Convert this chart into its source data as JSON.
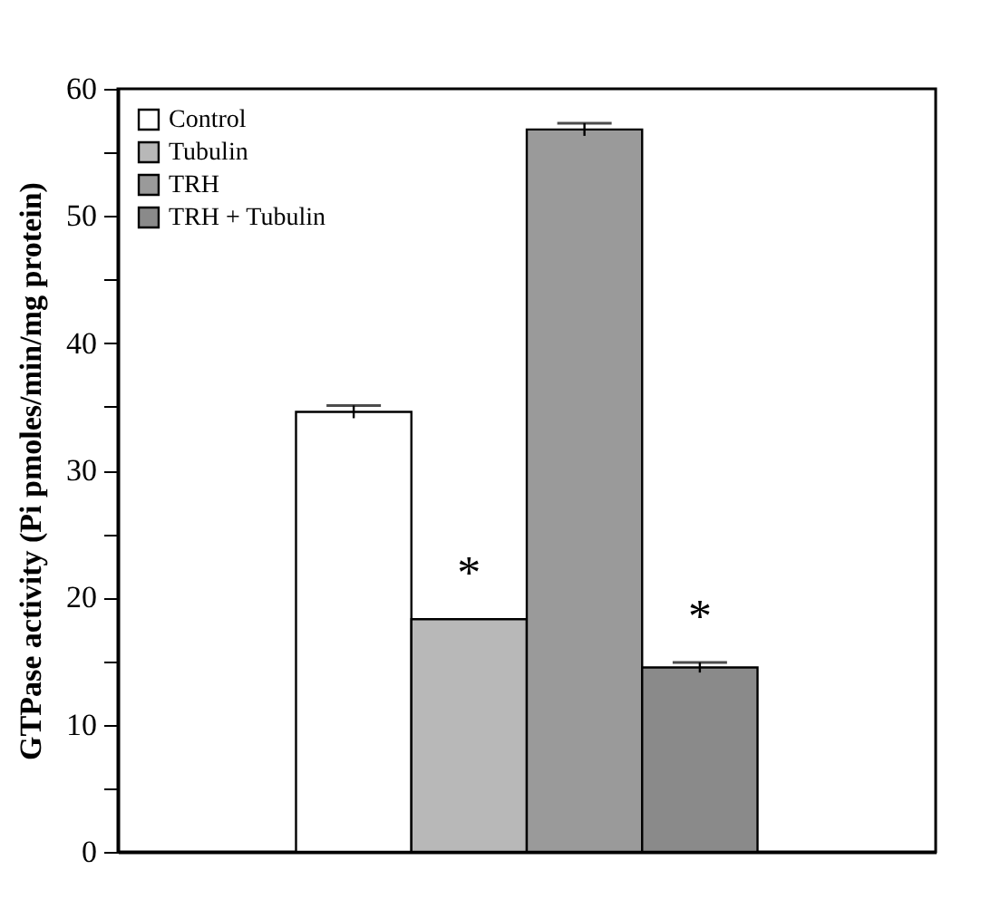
{
  "chart_data": {
    "type": "bar",
    "ylabel": "GTPase activity (Pi pmoles/min/mg protein)",
    "categories": [
      null
    ],
    "series": [
      {
        "name": "Control",
        "color": "#ffffff",
        "values": [
          34.6
        ],
        "errors": [
          0.5
        ]
      },
      {
        "name": "Tubulin",
        "color": "#b8b8b8",
        "values": [
          18.3
        ],
        "errors": [
          null
        ],
        "value_labels": [
          "*"
        ]
      },
      {
        "name": "TRH",
        "color": "#9a9a9a",
        "values": [
          56.8
        ],
        "errors": [
          0.5
        ]
      },
      {
        "name": "TRH + Tubulin",
        "color": "#8a8a8a",
        "values": [
          14.5
        ],
        "errors": [
          0.4
        ],
        "value_labels": [
          "*"
        ]
      }
    ],
    "ylim": [
      0,
      60
    ],
    "yticks": [
      0,
      {
        "value": 5,
        "label": null
      },
      10,
      {
        "value": 15,
        "label": null
      },
      20,
      {
        "value": 25,
        "label": null
      },
      30,
      {
        "value": 35,
        "label": null
      },
      40,
      {
        "value": 45,
        "label": null
      },
      50,
      {
        "value": 55,
        "label": null
      },
      60
    ],
    "grid": false,
    "legend": "top left",
    "tick_labels": "y"
  }
}
